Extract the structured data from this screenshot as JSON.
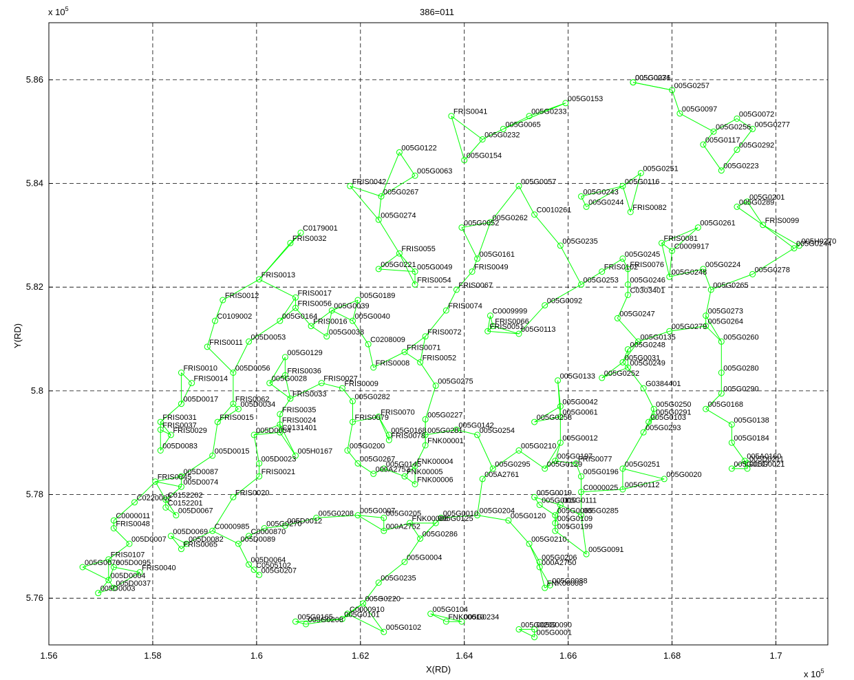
{
  "chart_data": {
    "type": "scatter",
    "title": "386=011",
    "xlabel": "X(RD)",
    "ylabel": "Y(RD)",
    "x_exponent": "x 10",
    "y_exponent": "x 10",
    "exponent_power": "5",
    "xlim": [
      1.56,
      1.71
    ],
    "ylim": [
      5.751,
      5.871
    ],
    "xticks": [
      "1.56",
      "1.58",
      "1.6",
      "1.62",
      "1.64",
      "1.66",
      "1.68",
      "1.7"
    ],
    "yticks": [
      "5.76",
      "5.78",
      "5.8",
      "5.82",
      "5.84",
      "5.86"
    ],
    "grid": true,
    "line_color": "#00ff00",
    "marker": "circle-open",
    "nodes": [
      {
        "id": "005G0071",
        "x": 1.6725,
        "y": 5.8595
      },
      {
        "id": "005G0236",
        "x": 1.6725,
        "y": 5.8595
      },
      {
        "id": "005G0257",
        "x": 1.68,
        "y": 5.858
      },
      {
        "id": "005G0153",
        "x": 1.6595,
        "y": 5.8555
      },
      {
        "id": "005G0097",
        "x": 1.6815,
        "y": 5.8535
      },
      {
        "id": "005G0233",
        "x": 1.6525,
        "y": 5.853
      },
      {
        "id": "005G0072",
        "x": 1.6925,
        "y": 5.8525
      },
      {
        "id": "005G0277",
        "x": 1.6955,
        "y": 5.8505
      },
      {
        "id": "005G0256",
        "x": 1.688,
        "y": 5.85
      },
      {
        "id": "005G0065",
        "x": 1.6475,
        "y": 5.8505
      },
      {
        "id": "005G0117",
        "x": 1.686,
        "y": 5.8475
      },
      {
        "id": "005G0292",
        "x": 1.6925,
        "y": 5.8465
      },
      {
        "id": "005G0232",
        "x": 1.6435,
        "y": 5.8485
      },
      {
        "id": "FRIS0041",
        "x": 1.6375,
        "y": 5.853
      },
      {
        "id": "005G0122",
        "x": 1.6275,
        "y": 5.846
      },
      {
        "id": "005G0154",
        "x": 1.64,
        "y": 5.8445
      },
      {
        "id": "005G0223",
        "x": 1.6895,
        "y": 5.8425
      },
      {
        "id": "005G0063",
        "x": 1.6305,
        "y": 5.8415
      },
      {
        "id": "005G0057",
        "x": 1.6505,
        "y": 5.8395
      },
      {
        "id": "005G0116",
        "x": 1.6705,
        "y": 5.8395
      },
      {
        "id": "005G0251",
        "x": 1.674,
        "y": 5.842
      },
      {
        "id": "FRIS0042",
        "x": 1.618,
        "y": 5.8395
      },
      {
        "id": "005G0267",
        "x": 1.624,
        "y": 5.8375
      },
      {
        "id": "005G0243",
        "x": 1.6625,
        "y": 5.8375
      },
      {
        "id": "005G0244",
        "x": 1.6635,
        "y": 5.8355
      },
      {
        "id": "005G0201",
        "x": 1.6945,
        "y": 5.8365
      },
      {
        "id": "005G0289",
        "x": 1.6925,
        "y": 5.8355
      },
      {
        "id": "FRIS0082",
        "x": 1.672,
        "y": 5.8345
      },
      {
        "id": "005G0274",
        "x": 1.6235,
        "y": 5.833
      },
      {
        "id": "C0179001",
        "x": 1.6085,
        "y": 5.8305
      },
      {
        "id": "FRIS0099",
        "x": 1.6975,
        "y": 5.832
      },
      {
        "id": "005G0261",
        "x": 1.685,
        "y": 5.8315
      },
      {
        "id": "005G0052",
        "x": 1.6395,
        "y": 5.8315
      },
      {
        "id": "005G0262",
        "x": 1.645,
        "y": 5.8325
      },
      {
        "id": "C0010261",
        "x": 1.6535,
        "y": 5.834
      },
      {
        "id": "FRIS0032",
        "x": 1.6065,
        "y": 5.8285
      },
      {
        "id": "FRIS0081",
        "x": 1.678,
        "y": 5.8285
      },
      {
        "id": "005G0235",
        "x": 1.6585,
        "y": 5.828
      },
      {
        "id": "005H0270",
        "x": 1.7045,
        "y": 5.828
      },
      {
        "id": "C0009917",
        "x": 1.68,
        "y": 5.827
      },
      {
        "id": "005G0244b",
        "x": 1.7035,
        "y": 5.8275
      },
      {
        "id": "FRIS0055",
        "x": 1.6275,
        "y": 5.8265
      },
      {
        "id": "005G0161",
        "x": 1.6425,
        "y": 5.8255
      },
      {
        "id": "005G0245",
        "x": 1.6705,
        "y": 5.8255
      },
      {
        "id": "005G0221",
        "x": 1.6235,
        "y": 5.8235
      },
      {
        "id": "005G0049",
        "x": 1.6305,
        "y": 5.823
      },
      {
        "id": "FRIS0049",
        "x": 1.6415,
        "y": 5.823
      },
      {
        "id": "005G0224",
        "x": 1.686,
        "y": 5.8235
      },
      {
        "id": "FRIS0076",
        "x": 1.6715,
        "y": 5.8235
      },
      {
        "id": "FRIS0102",
        "x": 1.6665,
        "y": 5.823
      },
      {
        "id": "005G0278",
        "x": 1.6955,
        "y": 5.8225
      },
      {
        "id": "005G0248b",
        "x": 1.6795,
        "y": 5.822
      },
      {
        "id": "FRIS0013",
        "x": 1.6005,
        "y": 5.8215
      },
      {
        "id": "005G0246",
        "x": 1.6715,
        "y": 5.8205
      },
      {
        "id": "005G0253",
        "x": 1.6625,
        "y": 5.8205
      },
      {
        "id": "C0303401",
        "x": 1.6715,
        "y": 5.8185
      },
      {
        "id": "FRIS0054",
        "x": 1.6305,
        "y": 5.8205
      },
      {
        "id": "005G0265",
        "x": 1.6875,
        "y": 5.8195
      },
      {
        "id": "FRIS0067",
        "x": 1.6385,
        "y": 5.8195
      },
      {
        "id": "FRIS0017",
        "x": 1.6075,
        "y": 5.818
      },
      {
        "id": "FRIS0012",
        "x": 1.5935,
        "y": 5.8175
      },
      {
        "id": "005G0189",
        "x": 1.6195,
        "y": 5.8175
      },
      {
        "id": "005G0092",
        "x": 1.6555,
        "y": 5.8165
      },
      {
        "id": "FRIS0056",
        "x": 1.6075,
        "y": 5.816
      },
      {
        "id": "FRIS0074",
        "x": 1.6365,
        "y": 5.8155
      },
      {
        "id": "C0009999",
        "x": 1.645,
        "y": 5.8145
      },
      {
        "id": "005G0039",
        "x": 1.6145,
        "y": 5.8155
      },
      {
        "id": "005G0164",
        "x": 1.6045,
        "y": 5.8135
      },
      {
        "id": "005G0040",
        "x": 1.6185,
        "y": 5.8135
      },
      {
        "id": "005G0247",
        "x": 1.6695,
        "y": 5.814
      },
      {
        "id": "005G0273",
        "x": 1.6865,
        "y": 5.8145
      },
      {
        "id": "FRIS0066",
        "x": 1.6455,
        "y": 5.8125
      },
      {
        "id": "C0109002",
        "x": 1.592,
        "y": 5.8135
      },
      {
        "id": "FRIS0016",
        "x": 1.6105,
        "y": 5.8125
      },
      {
        "id": "FRIS0051",
        "x": 1.6445,
        "y": 5.8115
      },
      {
        "id": "005G0113",
        "x": 1.6505,
        "y": 5.811
      },
      {
        "id": "005G0264",
        "x": 1.6865,
        "y": 5.8125
      },
      {
        "id": "FRIS0072",
        "x": 1.6325,
        "y": 5.8105
      },
      {
        "id": "005G0279",
        "x": 1.6795,
        "y": 5.8115
      },
      {
        "id": "005G0038",
        "x": 1.6135,
        "y": 5.8105
      },
      {
        "id": "005D0053",
        "x": 1.5985,
        "y": 5.8095
      },
      {
        "id": "005G0135",
        "x": 1.6735,
        "y": 5.8095
      },
      {
        "id": "FRIS0011",
        "x": 1.5905,
        "y": 5.8085
      },
      {
        "id": "005G0260",
        "x": 1.6895,
        "y": 5.8095
      },
      {
        "id": "FRIS0071",
        "x": 1.6285,
        "y": 5.8075
      },
      {
        "id": "005G0248",
        "x": 1.6715,
        "y": 5.808
      },
      {
        "id": "C0208009",
        "x": 1.6215,
        "y": 5.809
      },
      {
        "id": "005G0129",
        "x": 1.6055,
        "y": 5.8065
      },
      {
        "id": "FRIS0052",
        "x": 1.6315,
        "y": 5.8055
      },
      {
        "id": "005G0031",
        "x": 1.6705,
        "y": 5.8055
      },
      {
        "id": "FRIS0010",
        "x": 1.5855,
        "y": 5.8035
      },
      {
        "id": "005D0056",
        "x": 1.5955,
        "y": 5.8035
      },
      {
        "id": "FRIS0008",
        "x": 1.6225,
        "y": 5.8045
      },
      {
        "id": "005G0249",
        "x": 1.6715,
        "y": 5.8045
      },
      {
        "id": "005G0280",
        "x": 1.6895,
        "y": 5.8035
      },
      {
        "id": "FRIS0036",
        "x": 1.6055,
        "y": 5.803
      },
      {
        "id": "005G0133",
        "x": 1.658,
        "y": 5.802
      },
      {
        "id": "005G0252",
        "x": 1.6665,
        "y": 5.8025
      },
      {
        "id": "FRIS0014",
        "x": 1.5875,
        "y": 5.8015
      },
      {
        "id": "005G0028",
        "x": 1.6025,
        "y": 5.8015
      },
      {
        "id": "FRIS0027",
        "x": 1.6125,
        "y": 5.8015
      },
      {
        "id": "005G0275",
        "x": 1.6345,
        "y": 5.801
      },
      {
        "id": "FRIS0009",
        "x": 1.6165,
        "y": 5.8005
      },
      {
        "id": "G0384401",
        "x": 1.6745,
        "y": 5.8005
      },
      {
        "id": "005G0290",
        "x": 1.6895,
        "y": 5.7995
      },
      {
        "id": "FRIS0033",
        "x": 1.6065,
        "y": 5.7985
      },
      {
        "id": "005D0017",
        "x": 1.5855,
        "y": 5.7975
      },
      {
        "id": "FRIS0062",
        "x": 1.5955,
        "y": 5.7975
      },
      {
        "id": "005G0282",
        "x": 1.6185,
        "y": 5.798
      },
      {
        "id": "005D0034",
        "x": 1.5965,
        "y": 5.7965
      },
      {
        "id": "005G0250",
        "x": 1.6765,
        "y": 5.7965
      },
      {
        "id": "005G0042",
        "x": 1.6585,
        "y": 5.797
      },
      {
        "id": "005G0168",
        "x": 1.6865,
        "y": 5.7965
      },
      {
        "id": "005G0291",
        "x": 1.6765,
        "y": 5.795
      },
      {
        "id": "FRIS0035",
        "x": 1.6045,
        "y": 5.7955
      },
      {
        "id": "FRIS0070",
        "x": 1.6235,
        "y": 5.795
      },
      {
        "id": "005G0227",
        "x": 1.6325,
        "y": 5.7945
      },
      {
        "id": "005G0061",
        "x": 1.6585,
        "y": 5.795
      },
      {
        "id": "005G0103",
        "x": 1.6755,
        "y": 5.794
      },
      {
        "id": "FRIS0031",
        "x": 1.5815,
        "y": 5.794
      },
      {
        "id": "FRIS0015",
        "x": 1.5925,
        "y": 5.794
      },
      {
        "id": "FRIS0079",
        "x": 1.6185,
        "y": 5.794
      },
      {
        "id": "FRIS0024",
        "x": 1.6045,
        "y": 5.7935
      },
      {
        "id": "005G0258",
        "x": 1.6535,
        "y": 5.794
      },
      {
        "id": "005G0138",
        "x": 1.6915,
        "y": 5.7935
      },
      {
        "id": "FRIS0037",
        "x": 1.5815,
        "y": 5.7925
      },
      {
        "id": "C0131401",
        "x": 1.6045,
        "y": 5.792
      },
      {
        "id": "005G0142",
        "x": 1.6385,
        "y": 5.7925
      },
      {
        "id": "005G0293",
        "x": 1.6745,
        "y": 5.792
      },
      {
        "id": "FRIS0029",
        "x": 1.5835,
        "y": 5.7915
      },
      {
        "id": "005D0054",
        "x": 1.5995,
        "y": 5.7915
      },
      {
        "id": "005G0168b",
        "x": 1.6255,
        "y": 5.7915
      },
      {
        "id": "005G0281",
        "x": 1.6325,
        "y": 5.7915
      },
      {
        "id": "005G0254",
        "x": 1.6425,
        "y": 5.7915
      },
      {
        "id": "FRIS0078",
        "x": 1.6255,
        "y": 5.7905
      },
      {
        "id": "FNK00001",
        "x": 1.6325,
        "y": 5.7895
      },
      {
        "id": "005G0184",
        "x": 1.6915,
        "y": 5.79
      },
      {
        "id": "005G0012",
        "x": 1.6585,
        "y": 5.79
      },
      {
        "id": "005G0200",
        "x": 1.6175,
        "y": 5.7885
      },
      {
        "id": "005D0083",
        "x": 1.5815,
        "y": 5.7885
      },
      {
        "id": "005D0015",
        "x": 1.5915,
        "y": 5.7875
      },
      {
        "id": "005G0210b",
        "x": 1.6505,
        "y": 5.7885
      },
      {
        "id": "005H0167",
        "x": 1.6075,
        "y": 5.7875
      },
      {
        "id": "005G0197",
        "x": 1.6575,
        "y": 5.7865
      },
      {
        "id": "FRIS0077",
        "x": 1.6615,
        "y": 5.786
      },
      {
        "id": "005A0160",
        "x": 1.694,
        "y": 5.7865
      },
      {
        "id": "005D0211",
        "x": 1.6945,
        "y": 5.786
      },
      {
        "id": "005G0267b",
        "x": 1.6195,
        "y": 5.786
      },
      {
        "id": "005D0023",
        "x": 1.6005,
        "y": 5.786
      },
      {
        "id": "FNK00004",
        "x": 1.6305,
        "y": 5.7855
      },
      {
        "id": "005G0145",
        "x": 1.6245,
        "y": 5.785
      },
      {
        "id": "005G0295",
        "x": 1.6455,
        "y": 5.785
      },
      {
        "id": "005G0129b",
        "x": 1.6555,
        "y": 5.785
      },
      {
        "id": "005G0251b",
        "x": 1.6705,
        "y": 5.785
      },
      {
        "id": "005G0107",
        "x": 1.6915,
        "y": 5.785
      },
      {
        "id": "005G0021",
        "x": 1.6945,
        "y": 5.785
      },
      {
        "id": "FRIS0021",
        "x": 1.6005,
        "y": 5.7835
      },
      {
        "id": "000A2753",
        "x": 1.6225,
        "y": 5.784
      },
      {
        "id": "FNK00005",
        "x": 1.6285,
        "y": 5.7835
      },
      {
        "id": "005D0087",
        "x": 1.5855,
        "y": 5.7835
      },
      {
        "id": "005G0196",
        "x": 1.6625,
        "y": 5.7835
      },
      {
        "id": "005A2761",
        "x": 1.6435,
        "y": 5.783
      },
      {
        "id": "005G0020",
        "x": 1.6785,
        "y": 5.783
      },
      {
        "id": "FRIS0045",
        "x": 1.5805,
        "y": 5.7825
      },
      {
        "id": "FNK00006",
        "x": 1.6305,
        "y": 5.782
      },
      {
        "id": "005D0074",
        "x": 1.5855,
        "y": 5.7815
      },
      {
        "id": "005G0112",
        "x": 1.6705,
        "y": 5.781
      },
      {
        "id": "C0000025",
        "x": 1.6625,
        "y": 5.7805
      },
      {
        "id": "FRIS0020",
        "x": 1.5955,
        "y": 5.7795
      },
      {
        "id": "005G0019",
        "x": 1.6535,
        "y": 5.7795
      },
      {
        "id": "C0152202",
        "x": 1.5825,
        "y": 5.779
      },
      {
        "id": "005G0110",
        "x": 1.6545,
        "y": 5.778
      },
      {
        "id": "005G0111",
        "x": 1.6585,
        "y": 5.778
      },
      {
        "id": "C0152201",
        "x": 1.5825,
        "y": 5.7775
      },
      {
        "id": "C0220002",
        "x": 1.5765,
        "y": 5.7785
      },
      {
        "id": "005D0067",
        "x": 1.5845,
        "y": 5.776
      },
      {
        "id": "005G0007",
        "x": 1.6195,
        "y": 5.776
      },
      {
        "id": "005G0010",
        "x": 1.6355,
        "y": 5.7755
      },
      {
        "id": "005G0204",
        "x": 1.6425,
        "y": 5.776
      },
      {
        "id": "005G0285",
        "x": 1.6625,
        "y": 5.776
      },
      {
        "id": "005G0065b",
        "x": 1.6575,
        "y": 5.776
      },
      {
        "id": "005G0205",
        "x": 1.6245,
        "y": 5.7755
      },
      {
        "id": "005G0208",
        "x": 1.6115,
        "y": 5.7755
      },
      {
        "id": "005G0120",
        "x": 1.6485,
        "y": 5.775
      },
      {
        "id": "C0000011",
        "x": 1.5725,
        "y": 5.775
      },
      {
        "id": "FNK00008",
        "x": 1.6295,
        "y": 5.7745
      },
      {
        "id": "005G0125",
        "x": 1.6345,
        "y": 5.7745
      },
      {
        "id": "005G0109",
        "x": 1.6575,
        "y": 5.7745
      },
      {
        "id": "005D0012",
        "x": 1.6055,
        "y": 5.774
      },
      {
        "id": "005G0270",
        "x": 1.6015,
        "y": 5.7735
      },
      {
        "id": "FRIS0048",
        "x": 1.5725,
        "y": 5.7735
      },
      {
        "id": "005G0199",
        "x": 1.6575,
        "y": 5.773
      },
      {
        "id": "000A2752",
        "x": 1.6245,
        "y": 5.773
      },
      {
        "id": "C0000985",
        "x": 1.5915,
        "y": 5.773
      },
      {
        "id": "005D0069",
        "x": 1.5835,
        "y": 5.772
      },
      {
        "id": "C0000870",
        "x": 1.5985,
        "y": 5.772
      },
      {
        "id": "005G0286",
        "x": 1.6315,
        "y": 5.7715
      },
      {
        "id": "005D0007",
        "x": 1.5755,
        "y": 5.7705
      },
      {
        "id": "005D0082",
        "x": 1.5865,
        "y": 5.7705
      },
      {
        "id": "005D0089",
        "x": 1.5965,
        "y": 5.7705
      },
      {
        "id": "005G0210",
        "x": 1.6525,
        "y": 5.7705
      },
      {
        "id": "FRIS0065",
        "x": 1.5855,
        "y": 5.7695
      },
      {
        "id": "005G0091",
        "x": 1.6635,
        "y": 5.7685
      },
      {
        "id": "FRIS0107",
        "x": 1.5715,
        "y": 5.7675
      },
      {
        "id": "005G0004",
        "x": 1.6285,
        "y": 5.767
      },
      {
        "id": "005G0206",
        "x": 1.6545,
        "y": 5.767
      },
      {
        "id": "000A2750",
        "x": 1.6545,
        "y": 5.766
      },
      {
        "id": "005D0064",
        "x": 1.5985,
        "y": 5.7665
      },
      {
        "id": "005G0076",
        "x": 1.5665,
        "y": 5.766
      },
      {
        "id": "C0505102",
        "x": 1.5995,
        "y": 5.7655
      },
      {
        "id": "005D0095",
        "x": 1.5725,
        "y": 5.766
      },
      {
        "id": "FRIS0040",
        "x": 1.5775,
        "y": 5.765
      },
      {
        "id": "005G0207",
        "x": 1.6005,
        "y": 5.7645
      },
      {
        "id": "005D0004",
        "x": 1.5715,
        "y": 5.7635
      },
      {
        "id": "005G0235b",
        "x": 1.6235,
        "y": 5.763
      },
      {
        "id": "005G0088",
        "x": 1.6565,
        "y": 5.7625
      },
      {
        "id": "FNK00008b",
        "x": 1.6555,
        "y": 5.762
      },
      {
        "id": "005D0037",
        "x": 1.5725,
        "y": 5.762
      },
      {
        "id": "005D0003",
        "x": 1.5695,
        "y": 5.761
      },
      {
        "id": "005G0220",
        "x": 1.6205,
        "y": 5.759
      },
      {
        "id": "005G0104",
        "x": 1.6335,
        "y": 5.757
      },
      {
        "id": "C0000910",
        "x": 1.6175,
        "y": 5.757
      },
      {
        "id": "005G0165",
        "x": 1.6075,
        "y": 5.7555
      },
      {
        "id": "005G0101",
        "x": 1.6165,
        "y": 5.756
      },
      {
        "id": "FNK00010",
        "x": 1.6365,
        "y": 5.7555
      },
      {
        "id": "005G0234",
        "x": 1.6395,
        "y": 5.7555
      },
      {
        "id": "005G0208b",
        "x": 1.6095,
        "y": 5.755
      },
      {
        "id": "005G0209",
        "x": 1.6505,
        "y": 5.754
      },
      {
        "id": "005G0090",
        "x": 1.6535,
        "y": 5.754
      },
      {
        "id": "005G0102",
        "x": 1.6245,
        "y": 5.7535
      },
      {
        "id": "005G0001",
        "x": 1.6535,
        "y": 5.7525
      }
    ]
  }
}
